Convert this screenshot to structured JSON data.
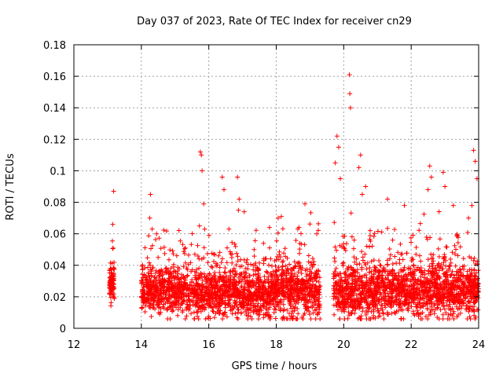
{
  "chart_data": {
    "type": "scatter",
    "title": "Day 037 of 2023, Rate Of TEC Index for receiver cn29",
    "xlabel": "GPS time / hours",
    "ylabel": "ROTI / TECUs",
    "xlim": [
      12,
      24
    ],
    "ylim": [
      0,
      0.18
    ],
    "x_ticks": [
      "12",
      "14",
      "16",
      "18",
      "20",
      "22",
      "24"
    ],
    "y_ticks": [
      "0",
      "0.02",
      "0.04",
      "0.06",
      "0.08",
      "0.1",
      "0.12",
      "0.14",
      "0.16",
      "0.18"
    ],
    "grid": true,
    "marker": "+",
    "color": "#ff0000",
    "series": [
      {
        "name": "ROTI",
        "seed": 37,
        "segments": [
          {
            "x": [
              13.05,
              13.2
            ],
            "n": 90,
            "base": 0.028,
            "spread": 0.01
          },
          {
            "x": [
              14.0,
              15.3
            ],
            "n": 520,
            "base": 0.024,
            "spread": 0.012
          },
          {
            "x": [
              15.3,
              16.6
            ],
            "n": 480,
            "base": 0.022,
            "spread": 0.013
          },
          {
            "x": [
              16.6,
              18.0
            ],
            "n": 560,
            "base": 0.022,
            "spread": 0.014
          },
          {
            "x": [
              18.0,
              19.3
            ],
            "n": 520,
            "base": 0.024,
            "spread": 0.015
          },
          {
            "x": [
              19.7,
              21.0
            ],
            "n": 520,
            "base": 0.022,
            "spread": 0.014
          },
          {
            "x": [
              21.0,
              22.5
            ],
            "n": 560,
            "base": 0.023,
            "spread": 0.014
          },
          {
            "x": [
              22.5,
              24.0
            ],
            "n": 620,
            "base": 0.024,
            "spread": 0.015
          }
        ],
        "peaks": [
          {
            "x": 13.18,
            "y": 0.087
          },
          {
            "x": 13.15,
            "y": 0.066
          },
          {
            "x": 14.27,
            "y": 0.085
          },
          {
            "x": 14.25,
            "y": 0.07
          },
          {
            "x": 14.32,
            "y": 0.063
          },
          {
            "x": 15.75,
            "y": 0.112
          },
          {
            "x": 15.78,
            "y": 0.11
          },
          {
            "x": 15.8,
            "y": 0.1
          },
          {
            "x": 15.85,
            "y": 0.079
          },
          {
            "x": 16.4,
            "y": 0.096
          },
          {
            "x": 16.45,
            "y": 0.088
          },
          {
            "x": 16.85,
            "y": 0.096
          },
          {
            "x": 16.9,
            "y": 0.082
          },
          {
            "x": 17.05,
            "y": 0.074
          },
          {
            "x": 17.8,
            "y": 0.064
          },
          {
            "x": 18.15,
            "y": 0.071
          },
          {
            "x": 18.85,
            "y": 0.079
          },
          {
            "x": 19.2,
            "y": 0.06
          },
          {
            "x": 19.8,
            "y": 0.122
          },
          {
            "x": 19.85,
            "y": 0.115
          },
          {
            "x": 19.75,
            "y": 0.105
          },
          {
            "x": 19.9,
            "y": 0.095
          },
          {
            "x": 20.17,
            "y": 0.161
          },
          {
            "x": 20.18,
            "y": 0.149
          },
          {
            "x": 20.2,
            "y": 0.14
          },
          {
            "x": 20.5,
            "y": 0.11
          },
          {
            "x": 20.45,
            "y": 0.102
          },
          {
            "x": 20.65,
            "y": 0.09
          },
          {
            "x": 20.55,
            "y": 0.085
          },
          {
            "x": 21.3,
            "y": 0.082
          },
          {
            "x": 21.8,
            "y": 0.078
          },
          {
            "x": 22.55,
            "y": 0.103
          },
          {
            "x": 22.6,
            "y": 0.096
          },
          {
            "x": 22.5,
            "y": 0.088
          },
          {
            "x": 22.95,
            "y": 0.099
          },
          {
            "x": 23.0,
            "y": 0.09
          },
          {
            "x": 23.25,
            "y": 0.078
          },
          {
            "x": 23.85,
            "y": 0.113
          },
          {
            "x": 23.9,
            "y": 0.106
          },
          {
            "x": 23.95,
            "y": 0.095
          },
          {
            "x": 23.8,
            "y": 0.078
          },
          {
            "x": 23.7,
            "y": 0.07
          }
        ]
      }
    ]
  }
}
